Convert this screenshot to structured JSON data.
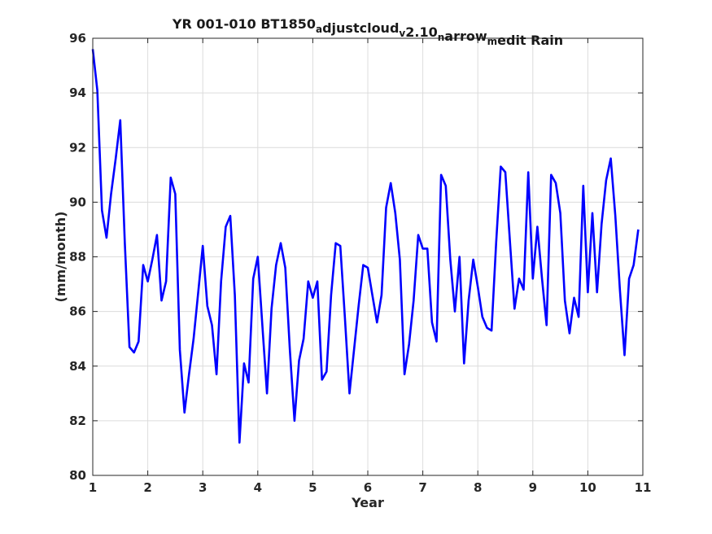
{
  "chart_data": {
    "type": "line",
    "title": {
      "parts": [
        {
          "text": "YR 001-010 BT1850",
          "sub": false
        },
        {
          "text": "a",
          "sub": true
        },
        {
          "text": "djustcloud",
          "sub": false
        },
        {
          "text": "v",
          "sub": true
        },
        {
          "text": "2.10",
          "sub": false
        },
        {
          "text": "n",
          "sub": true
        },
        {
          "text": "arrow",
          "sub": false
        },
        {
          "text": "m",
          "sub": true
        },
        {
          "text": "edit Rain",
          "sub": false
        }
      ]
    },
    "xlabel": "Year",
    "ylabel": "(mm/month)",
    "xlim": [
      1,
      11
    ],
    "ylim": [
      80,
      96
    ],
    "xticks": [
      1,
      2,
      3,
      4,
      5,
      6,
      7,
      8,
      9,
      10,
      11
    ],
    "yticks": [
      80,
      82,
      84,
      86,
      88,
      90,
      92,
      94,
      96
    ],
    "grid": true,
    "series": [
      {
        "color": "#0000ff",
        "x": [
          1.0,
          1.083,
          1.167,
          1.25,
          1.333,
          1.417,
          1.5,
          1.583,
          1.667,
          1.75,
          1.833,
          1.917,
          2.0,
          2.083,
          2.167,
          2.25,
          2.333,
          2.417,
          2.5,
          2.583,
          2.667,
          2.75,
          2.833,
          2.917,
          3.0,
          3.083,
          3.167,
          3.25,
          3.333,
          3.417,
          3.5,
          3.583,
          3.667,
          3.75,
          3.833,
          3.917,
          4.0,
          4.083,
          4.167,
          4.25,
          4.333,
          4.417,
          4.5,
          4.583,
          4.667,
          4.75,
          4.833,
          4.917,
          5.0,
          5.083,
          5.167,
          5.25,
          5.333,
          5.417,
          5.5,
          5.583,
          5.667,
          5.75,
          5.833,
          5.917,
          6.0,
          6.083,
          6.167,
          6.25,
          6.333,
          6.417,
          6.5,
          6.583,
          6.667,
          6.75,
          6.833,
          6.917,
          7.0,
          7.083,
          7.167,
          7.25,
          7.333,
          7.417,
          7.5,
          7.583,
          7.667,
          7.75,
          7.833,
          7.917,
          8.0,
          8.083,
          8.167,
          8.25,
          8.333,
          8.417,
          8.5,
          8.583,
          8.667,
          8.75,
          8.833,
          8.917,
          9.0,
          9.083,
          9.167,
          9.25,
          9.333,
          9.417,
          9.5,
          9.583,
          9.667,
          9.75,
          9.833,
          9.917,
          10.0,
          10.083,
          10.167,
          10.25,
          10.333,
          10.417,
          10.5,
          10.583,
          10.667,
          10.75,
          10.833,
          10.917
        ],
        "y": [
          95.6,
          94.1,
          89.7,
          88.7,
          90.3,
          91.6,
          93.0,
          88.5,
          84.7,
          84.5,
          84.9,
          87.7,
          87.1,
          87.9,
          88.8,
          86.4,
          87.1,
          90.9,
          90.3,
          84.6,
          82.3,
          83.7,
          85.0,
          86.7,
          88.4,
          86.2,
          85.5,
          83.7,
          87.1,
          89.1,
          89.5,
          86.6,
          81.2,
          84.1,
          83.4,
          87.2,
          88.0,
          85.5,
          83.0,
          86.1,
          87.7,
          88.5,
          87.6,
          84.6,
          82.0,
          84.2,
          85.0,
          87.1,
          86.5,
          87.1,
          83.5,
          83.8,
          86.6,
          88.5,
          88.4,
          85.8,
          83.0,
          84.6,
          86.2,
          87.7,
          87.6,
          86.6,
          85.6,
          86.6,
          89.8,
          90.7,
          89.6,
          87.9,
          83.7,
          84.8,
          86.4,
          88.8,
          88.3,
          88.3,
          85.6,
          84.9,
          91.0,
          90.6,
          87.9,
          86.0,
          88.0,
          84.1,
          86.4,
          87.9,
          86.9,
          85.8,
          85.4,
          85.3,
          88.5,
          91.3,
          91.1,
          88.6,
          86.1,
          87.2,
          86.8,
          91.1,
          87.2,
          89.1,
          87.2,
          85.5,
          91.0,
          90.7,
          89.6,
          86.4,
          85.2,
          86.5,
          85.8,
          90.6,
          86.7,
          89.6,
          86.7,
          89.2,
          90.8,
          91.6,
          89.5,
          86.8,
          84.4,
          87.2,
          87.7,
          89.0
        ]
      }
    ]
  }
}
